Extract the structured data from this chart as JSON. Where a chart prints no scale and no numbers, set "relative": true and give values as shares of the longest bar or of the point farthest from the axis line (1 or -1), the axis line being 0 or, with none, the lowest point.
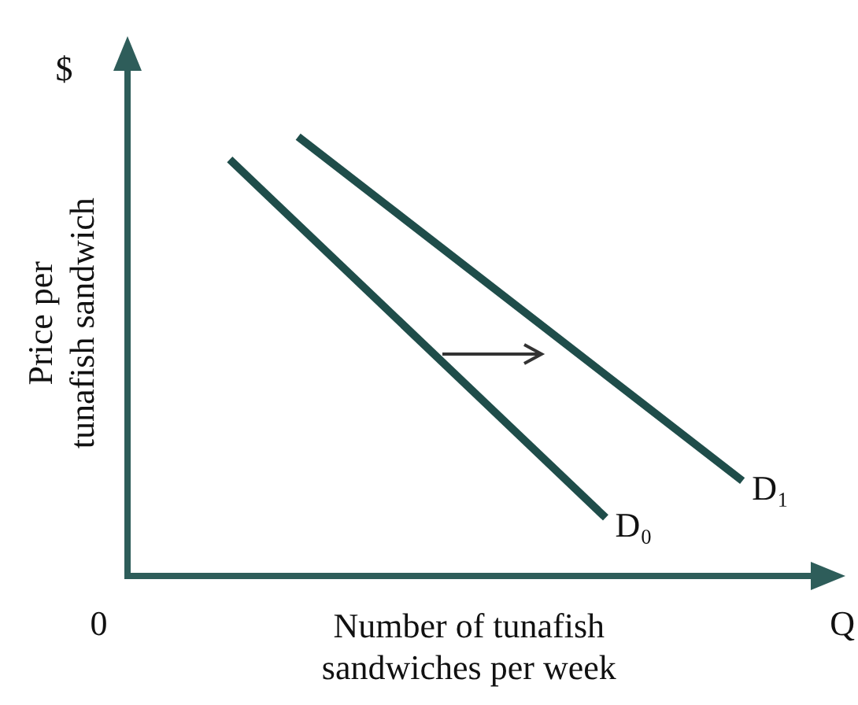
{
  "chart_data": {
    "type": "line",
    "relative": true,
    "xlabel": "Number of tunafish sandwiches per week",
    "ylabel": "Price per tunafish sandwich",
    "annotations": [
      "$",
      "0",
      "Q"
    ],
    "categories": [
      null,
      null,
      null,
      null,
      null,
      null,
      null,
      null,
      null,
      null,
      null,
      null,
      null,
      null,
      null,
      null,
      null,
      null,
      null,
      null,
      null
    ],
    "series": [
      {
        "name": "D₀",
        "color": "#1f4d4a",
        "values": [
          null,
          null,
          null,
          0.948,
          null,
          null,
          null,
          null,
          null,
          null,
          null,
          null,
          null,
          null,
          0.132,
          null,
          null,
          null,
          null,
          null,
          null
        ]
      },
      {
        "name": "D₁",
        "color": "#1f4d4a",
        "values": [
          null,
          null,
          null,
          null,
          null,
          1,
          null,
          null,
          null,
          null,
          null,
          null,
          null,
          null,
          null,
          null,
          null,
          null,
          0.216,
          null,
          null
        ]
      }
    ],
    "grid": false,
    "legend": false,
    "marker": "none",
    "line_style": "solid"
  }
}
